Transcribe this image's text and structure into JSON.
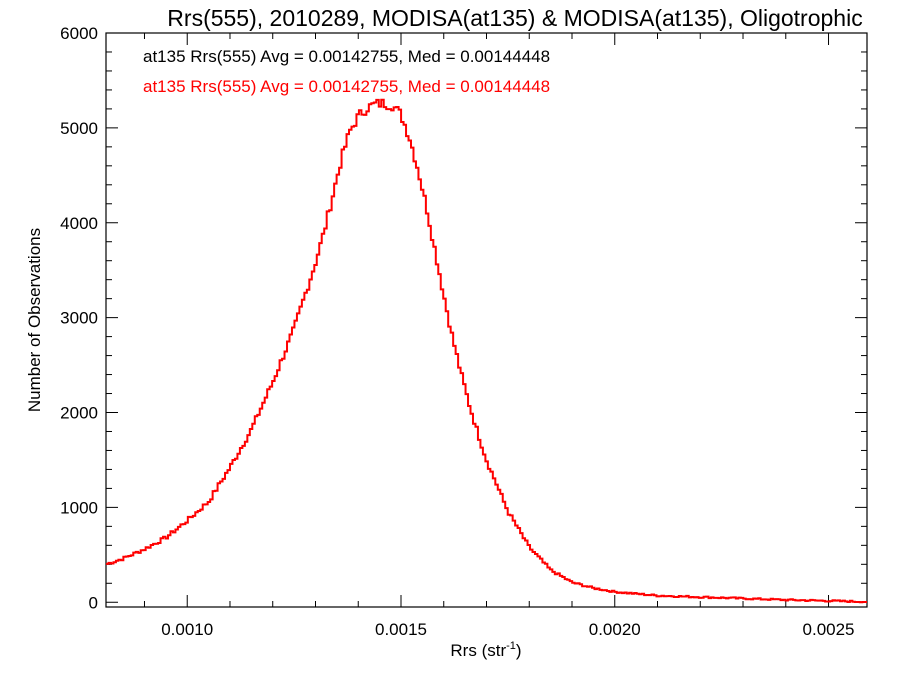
{
  "chart_data": {
    "type": "line",
    "title": "Rrs(555), 2010289, MODISA(at135) & MODISA(at135), Oligotrophic",
    "xlabel_main": "Rrs (str",
    "xlabel_sup": "-1",
    "xlabel_close": ")",
    "ylabel": "Number of Observations",
    "xlim": [
      0.00081,
      0.00259
    ],
    "ylim": [
      -50,
      6000
    ],
    "x_ticks": [
      {
        "value": 0.001,
        "label": "0.0010"
      },
      {
        "value": 0.0015,
        "label": "0.0015"
      },
      {
        "value": 0.002,
        "label": "0.0020"
      },
      {
        "value": 0.0025,
        "label": "0.0025"
      }
    ],
    "y_ticks": [
      {
        "value": 0,
        "label": "0"
      },
      {
        "value": 1000,
        "label": "1000"
      },
      {
        "value": 2000,
        "label": "2000"
      },
      {
        "value": 3000,
        "label": "3000"
      },
      {
        "value": 4000,
        "label": "4000"
      },
      {
        "value": 5000,
        "label": "5000"
      },
      {
        "value": 6000,
        "label": "6000"
      }
    ],
    "grid": false,
    "annotations": [
      {
        "text": "at135 Rrs(555) Avg = 0.00142755, Med = 0.00144448",
        "color": "#000000"
      },
      {
        "text": "at135 Rrs(555) Avg = 0.00142755, Med = 0.00144448",
        "color": "#ff0000"
      }
    ],
    "series": [
      {
        "color": "#ff0000",
        "style": "histogram-step",
        "x": [
          0.00081,
          0.00085,
          0.0009,
          0.00095,
          0.001,
          0.00105,
          0.0011,
          0.00115,
          0.0012,
          0.00125,
          0.0013,
          0.00132,
          0.00134,
          0.00136,
          0.00138,
          0.0014,
          0.00142,
          0.00144,
          0.00146,
          0.00148,
          0.0015,
          0.00152,
          0.00154,
          0.00156,
          0.00158,
          0.0016,
          0.00162,
          0.00164,
          0.00166,
          0.00168,
          0.0017,
          0.00175,
          0.0018,
          0.00185,
          0.0019,
          0.00195,
          0.002,
          0.00205,
          0.0021,
          0.0022,
          0.0023,
          0.0024,
          0.0025,
          0.00259
        ],
        "y": [
          400,
          460,
          560,
          680,
          860,
          1060,
          1420,
          1820,
          2320,
          2880,
          3580,
          3900,
          4280,
          4660,
          4960,
          5120,
          5210,
          5250,
          5260,
          5240,
          5140,
          4900,
          4560,
          4160,
          3700,
          3240,
          2800,
          2420,
          2080,
          1780,
          1500,
          960,
          580,
          340,
          210,
          150,
          110,
          90,
          70,
          55,
          40,
          25,
          15,
          5
        ]
      }
    ]
  }
}
